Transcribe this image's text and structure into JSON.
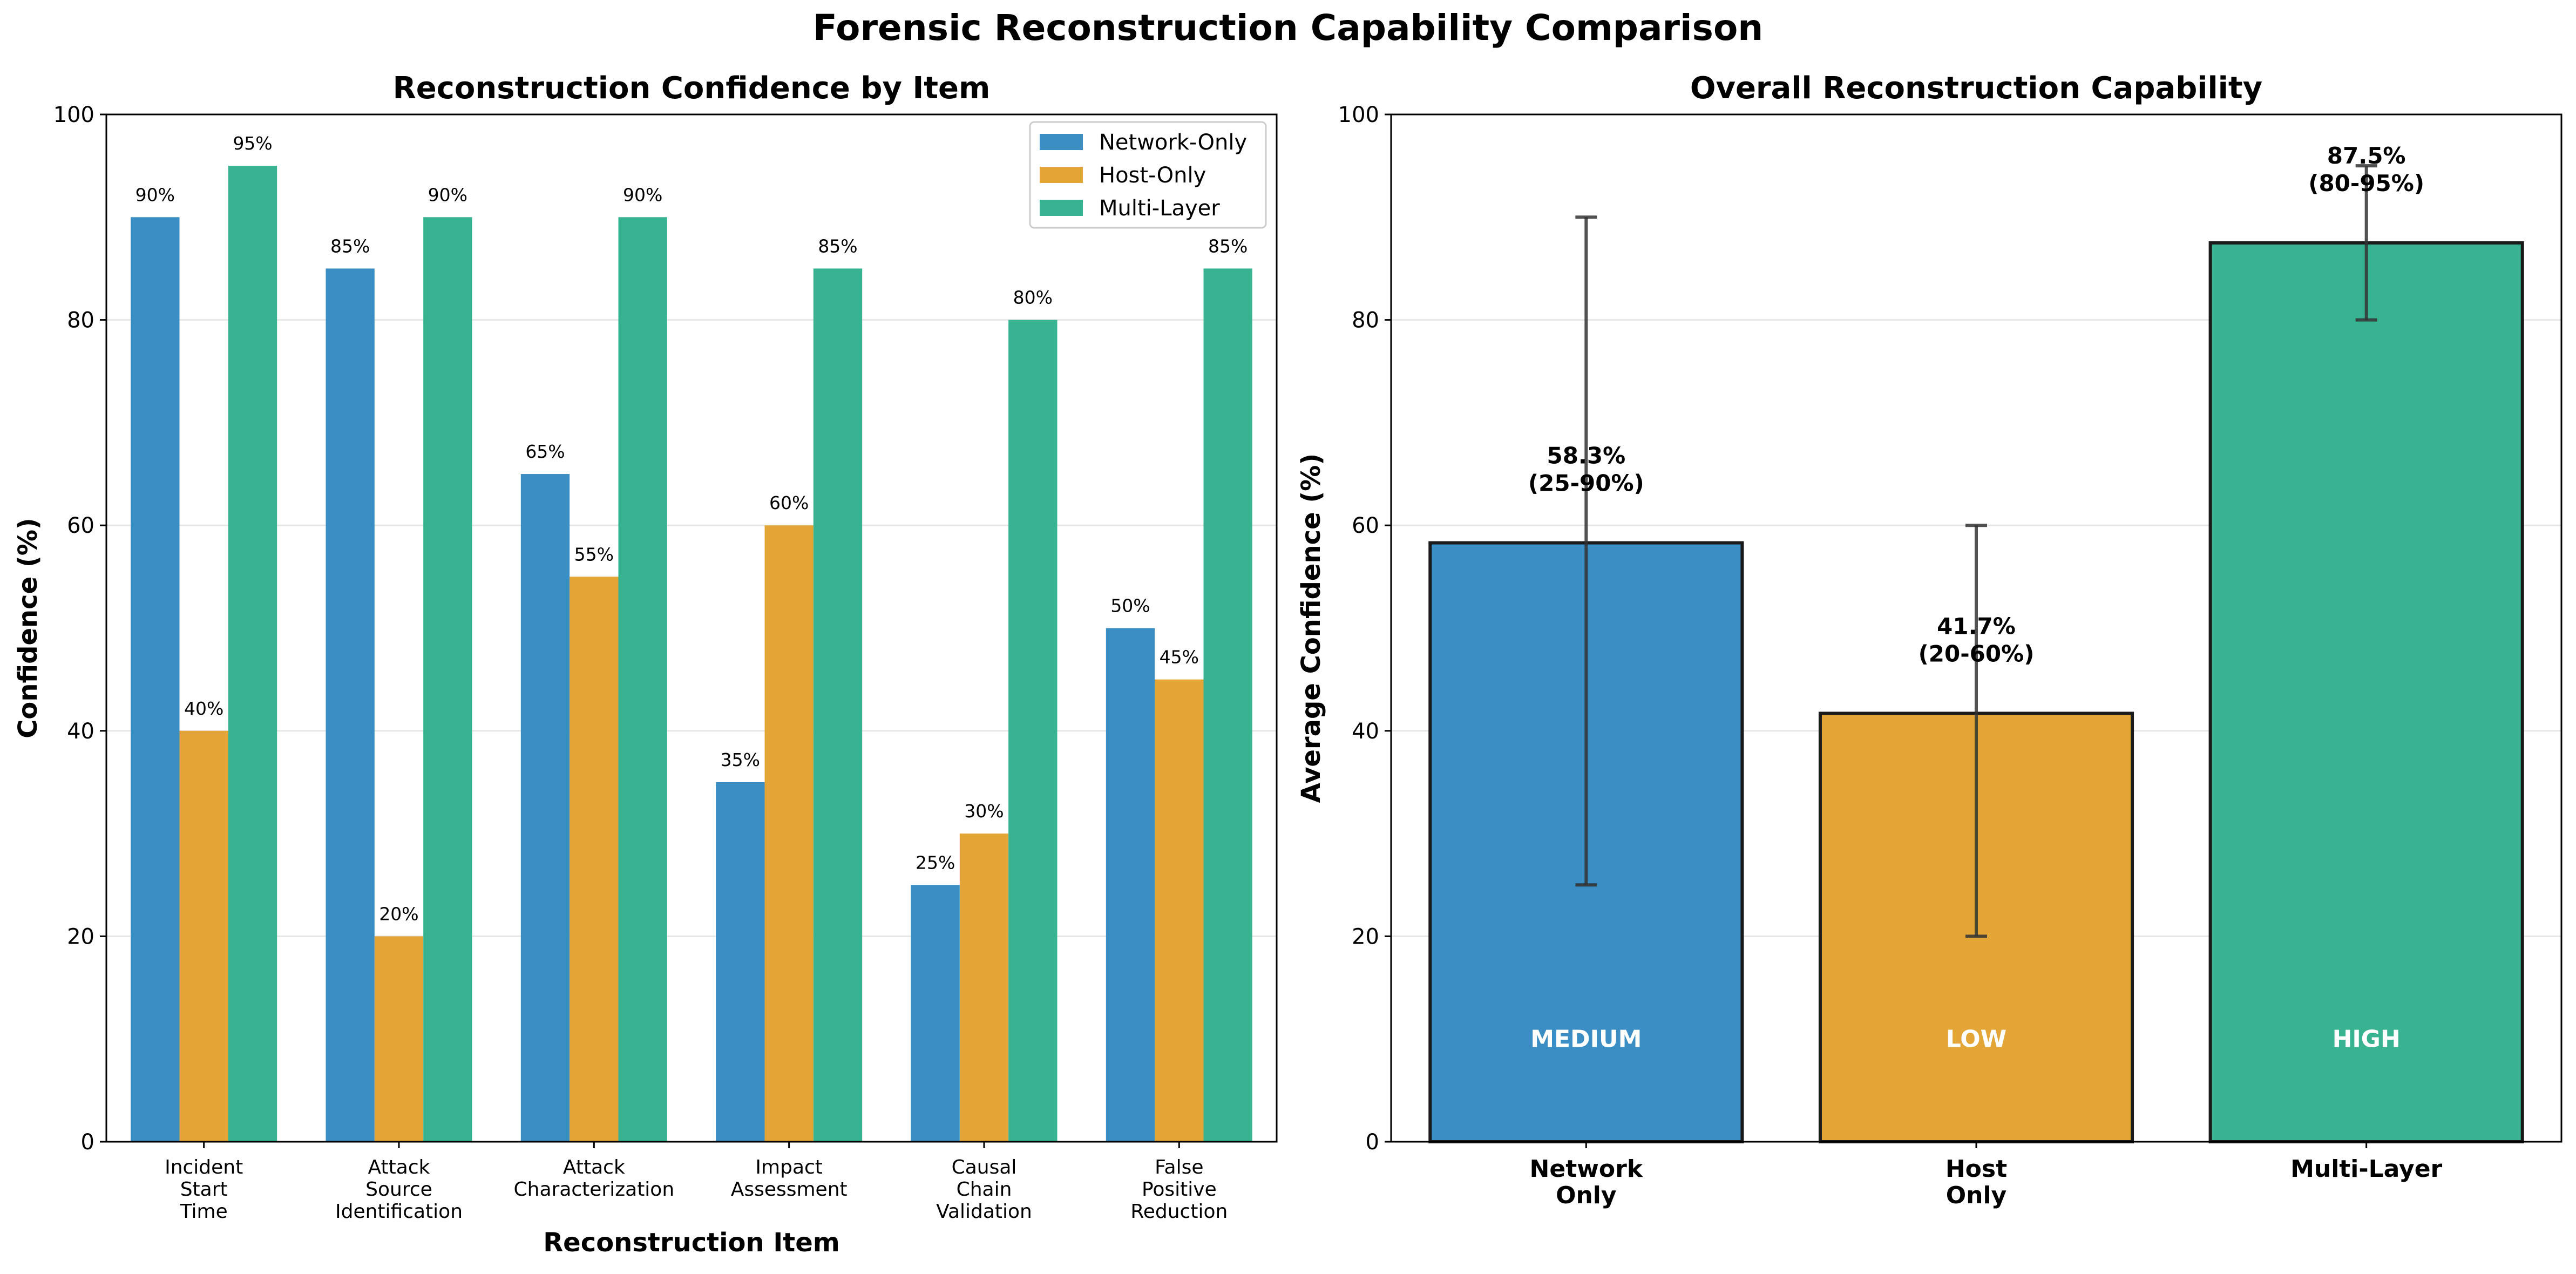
{
  "figure": {
    "title": "Forensic Reconstruction Capability Comparison"
  },
  "chart_data": [
    {
      "type": "bar",
      "title": "Reconstruction Confidence by Item",
      "xlabel": "Reconstruction Item",
      "ylabel": "Confidence (%)",
      "ylim": [
        0,
        100
      ],
      "yticks": [
        "0",
        "20",
        "40",
        "60",
        "80",
        "100"
      ],
      "grid": "y",
      "legend_position": "top-right",
      "categories": [
        [
          "Incident",
          "Start",
          "Time"
        ],
        [
          "Attack",
          "Source",
          "Identification"
        ],
        [
          "Attack",
          "Characterization"
        ],
        [
          "Impact",
          "Assessment"
        ],
        [
          "Causal",
          "Chain",
          "Validation"
        ],
        [
          "False",
          "Positive",
          "Reduction"
        ]
      ],
      "series": [
        {
          "name": "Network-Only",
          "color": "#3a8ec4",
          "values": [
            90,
            85,
            65,
            35,
            25,
            50
          ],
          "labels": [
            "90%",
            "85%",
            "65%",
            "35%",
            "25%",
            "50%"
          ]
        },
        {
          "name": "Host-Only",
          "color": "#e4a537",
          "values": [
            40,
            20,
            55,
            60,
            30,
            45
          ],
          "labels": [
            "40%",
            "20%",
            "55%",
            "60%",
            "30%",
            "45%"
          ]
        },
        {
          "name": "Multi-Layer",
          "color": "#37b391",
          "values": [
            95,
            90,
            90,
            85,
            80,
            85
          ],
          "labels": [
            "95%",
            "90%",
            "90%",
            "85%",
            "80%",
            "85%"
          ]
        }
      ]
    },
    {
      "type": "bar",
      "title": "Overall Reconstruction Capability",
      "xlabel": "",
      "ylabel": "Average Confidence (%)",
      "ylim": [
        0,
        100
      ],
      "yticks": [
        "0",
        "20",
        "40",
        "60",
        "80",
        "100"
      ],
      "grid": "y",
      "bars": [
        {
          "category": [
            "Network",
            "Only"
          ],
          "value": 58.3,
          "min": 25,
          "max": 90,
          "label": [
            "58.3%",
            "(25-90%)"
          ],
          "level": "MEDIUM",
          "color": "#3a8ec4"
        },
        {
          "category": [
            "Host",
            "Only"
          ],
          "value": 41.7,
          "min": 20,
          "max": 60,
          "label": [
            "41.7%",
            "(20-60%)"
          ],
          "level": "LOW",
          "color": "#e4a537"
        },
        {
          "category": [
            "Multi-Layer"
          ],
          "value": 87.5,
          "min": 80,
          "max": 95,
          "label": [
            "87.5%",
            "(80-95%)"
          ],
          "level": "HIGH",
          "color": "#37b391"
        }
      ]
    }
  ]
}
